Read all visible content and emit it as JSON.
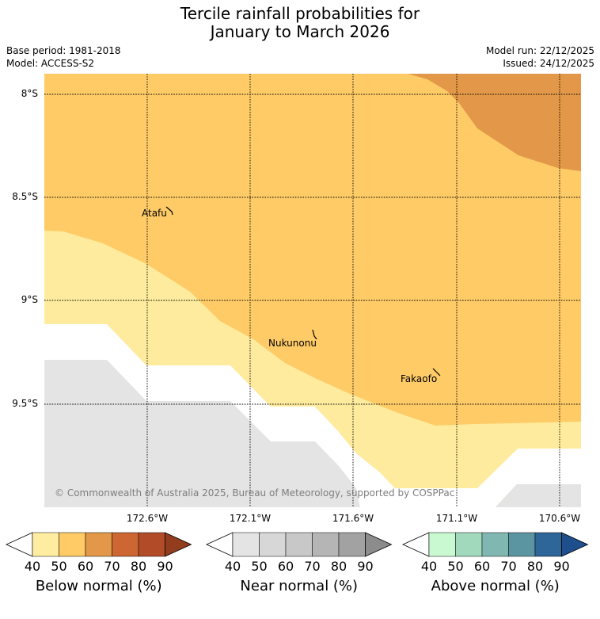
{
  "title": {
    "line1": "Tercile rainfall probabilities for",
    "line2": "January to March 2026"
  },
  "meta": {
    "base_period": "Base period: 1981-2018",
    "model": "Model: ACCESS-S2",
    "model_run": "Model run: 22/12/2025",
    "issued": "Issued: 24/12/2025"
  },
  "map": {
    "latitude_labels": [
      "8°S",
      "8.5°S",
      "9°S",
      "9.5°S"
    ],
    "longitude_labels": [
      "172.6°W",
      "172.1°W",
      "171.6°W",
      "171.1°W",
      "170.6°W"
    ],
    "places": [
      "Atafu",
      "Nukunonu",
      "Fakaofo"
    ],
    "copyright": "© Commonwealth of Australia 2025, Bureau of Meteorology, supported by COSPPac",
    "colors": {
      "below_50_60": "#fecb67",
      "below_40_50": "#feeb9d",
      "below_60_70": "#e29848",
      "near_normal": "#e4e4e4",
      "no_dominant": "#ffffff"
    }
  },
  "legends": [
    {
      "label": "Below normal (%)",
      "ticks": [
        "40",
        "50",
        "60",
        "70",
        "80",
        "90"
      ],
      "colors": [
        "#ffffff",
        "#feeda0",
        "#fecb67",
        "#e29848",
        "#cc6633",
        "#b24c28",
        "#933d1f"
      ]
    },
    {
      "label": "Near normal (%)",
      "ticks": [
        "40",
        "50",
        "60",
        "70",
        "80",
        "90"
      ],
      "colors": [
        "#ffffff",
        "#e4e4e4",
        "#d7d7d7",
        "#c8c8c8",
        "#b5b5b5",
        "#a2a2a2",
        "#8c8c8c"
      ]
    },
    {
      "label": "Above normal (%)",
      "ticks": [
        "40",
        "50",
        "60",
        "70",
        "80",
        "90"
      ],
      "colors": [
        "#ffffff",
        "#c9f9d0",
        "#a1d9bd",
        "#80b7b0",
        "#5b95a1",
        "#2e6699",
        "#1e4f8c"
      ]
    }
  ]
}
